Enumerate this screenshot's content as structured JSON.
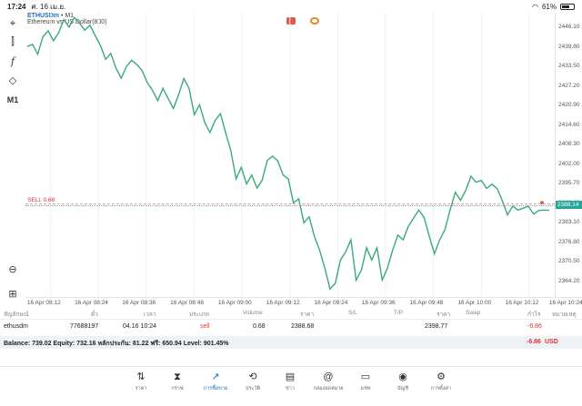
{
  "status": {
    "time": "17:24",
    "date": "ศ. 16 เม.ย.",
    "battery": "61%"
  },
  "symbol": {
    "name": "ETHUSDm",
    "timeframe_sep": " • M1",
    "description": "Ethereum vs US Dollar(800)"
  },
  "toolbar": {
    "timeframe": "M1"
  },
  "chart_data": {
    "type": "line",
    "color": "#3aaa7a",
    "ylim": [
      2361,
      2450
    ],
    "xlim": [
      0,
      100
    ],
    "yticks": [
      "2446.10",
      "2439.80",
      "2433.50",
      "2427.20",
      "2420.90",
      "2414.60",
      "2408.30",
      "2402.00",
      "2395.70",
      "2389.40",
      "2383.10",
      "2376.80",
      "2370.50",
      "2364.20"
    ],
    "xticks": [
      {
        "x": 4.5,
        "label": "16 Apr 08:12"
      },
      {
        "x": 13.6,
        "label": "16 Apr 08:24"
      },
      {
        "x": 22.7,
        "label": "16 Apr 08:36"
      },
      {
        "x": 31.9,
        "label": "16 Apr 08:48"
      },
      {
        "x": 41.1,
        "label": "16 Apr 09:00"
      },
      {
        "x": 50.3,
        "label": "16 Apr 09:12"
      },
      {
        "x": 59.5,
        "label": "16 Apr 09:24"
      },
      {
        "x": 68.6,
        "label": "16 Apr 09:36"
      },
      {
        "x": 77.8,
        "label": "16 Apr 09:48"
      },
      {
        "x": 87.0,
        "label": "16 Apr 10:00"
      },
      {
        "x": 96.1,
        "label": "16 Apr 10:12"
      },
      {
        "x": 104.5,
        "label": "16 Apr 10:24"
      }
    ],
    "x": [
      0,
      1,
      2,
      3,
      4,
      5,
      6,
      7,
      8,
      9,
      10,
      11,
      12,
      13,
      14,
      15,
      16,
      17,
      18,
      19,
      20,
      21,
      22,
      23,
      24,
      25,
      26,
      27,
      28,
      29,
      30,
      31,
      32,
      33,
      34,
      35,
      36,
      37,
      38,
      39,
      40,
      41,
      42,
      43,
      44,
      45,
      46,
      47,
      48,
      49,
      50,
      51,
      52,
      53,
      54,
      55,
      56,
      57,
      58,
      59,
      60,
      61,
      62,
      63,
      64,
      65,
      66,
      67,
      68,
      69,
      70,
      71,
      72,
      73,
      74,
      75,
      76,
      77,
      78,
      79,
      80,
      81,
      82,
      83,
      84,
      85,
      86,
      87,
      88,
      89,
      90,
      91,
      92,
      93,
      94,
      95,
      96,
      97,
      98,
      99,
      100
    ],
    "y": [
      2439.4,
      2440.1,
      2437.0,
      2442.5,
      2444.3,
      2441.2,
      2443.7,
      2447.8,
      2445.5,
      2448.5,
      2446.8,
      2444.5,
      2446.1,
      2442.9,
      2439.8,
      2435.4,
      2437.3,
      2432.6,
      2429.5,
      2433.2,
      2435.1,
      2433.8,
      2431.9,
      2428.1,
      2425.6,
      2422.5,
      2426.3,
      2423.1,
      2420.0,
      2424.4,
      2429.4,
      2426.3,
      2418.1,
      2421.2,
      2415.6,
      2412.5,
      2416.3,
      2418.4,
      2412.5,
      2406.7,
      2398.0,
      2401.6,
      2396.4,
      2399.2,
      2395.1,
      2397.6,
      2403.8,
      2405.1,
      2403.6,
      2399.2,
      2398.0,
      2390.5,
      2391.7,
      2384.2,
      2386.1,
      2380.0,
      2375.7,
      2370.0,
      2363.5,
      2365.3,
      2372.6,
      2375.1,
      2378.9,
      2366.3,
      2369.4,
      2376.4,
      2372.6,
      2376.4,
      2366.3,
      2370.1,
      2375.7,
      2380.4,
      2378.9,
      2383.1,
      2385.7,
      2388.2,
      2386.0,
      2380.1,
      2374.5,
      2378.9,
      2382.0,
      2388.2,
      2393.8,
      2391.3,
      2394.4,
      2398.8,
      2396.9,
      2397.5,
      2395.0,
      2396.3,
      2395.0,
      2391.2,
      2386.7,
      2389.5,
      2388.2,
      2388.8,
      2389.4,
      2387.0,
      2388.1,
      2388.2,
      2388.14
    ]
  },
  "chart": {
    "sell_label": "SELL 0.68",
    "current_price": "2388.14"
  },
  "table": {
    "headers": [
      "สัญลักษณ์",
      "ตั๋ว",
      "เวลา",
      "ประเภท",
      "Volume",
      "ราคา",
      "S/L",
      "T/P",
      "ราคา",
      "Swap",
      "กำไร",
      "หมายเหตุ"
    ],
    "row": {
      "symbol": "ethusdm",
      "ticket": "77688197",
      "time": "04.16 10:24",
      "type": "sell",
      "volume": "0.68",
      "price": "2388.68",
      "sl": "",
      "tp": "",
      "current": "2398.77",
      "swap": "",
      "profit": "-6.86",
      "comment": ""
    }
  },
  "balance": {
    "text": "Balance: 739.02 Equity: 732.16 หลักประกัน: 81.22 ฟรี: 650.94 Level: 901.45%",
    "profit": "-6.86",
    "currency": "USD"
  },
  "nav": [
    {
      "icon": "⇅",
      "label": "ราคา"
    },
    {
      "icon": "⧗",
      "label": "กราฟ"
    },
    {
      "icon": "↗",
      "label": "การซื้อขาย"
    },
    {
      "icon": "⟲",
      "label": "ประวัติ"
    },
    {
      "icon": "▤",
      "label": "ข่าว"
    },
    {
      "icon": "@",
      "label": "กล่องจดหมาย"
    },
    {
      "icon": "▭",
      "label": "แชท"
    },
    {
      "icon": "◉",
      "label": "บัญชี"
    },
    {
      "icon": "⚙",
      "label": "การตั้งค่า"
    }
  ]
}
